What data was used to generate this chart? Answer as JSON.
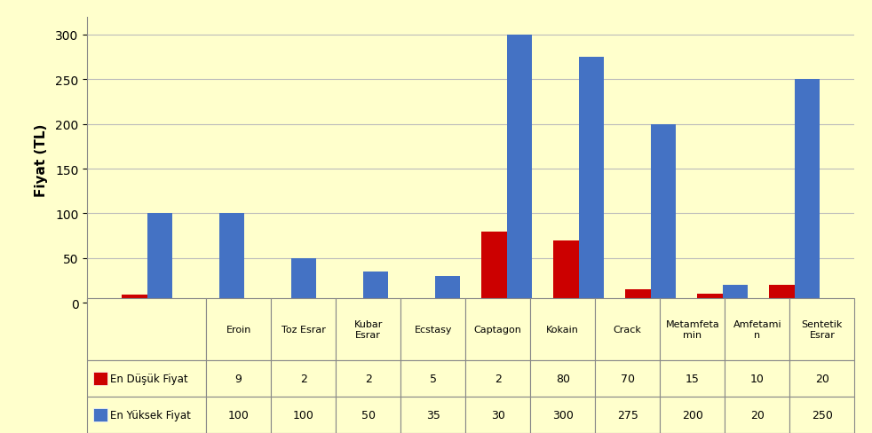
{
  "categories": [
    "Eroin",
    "Toz Esrar",
    "Kubar\nEsrar",
    "Ecstasy",
    "Captagon",
    "Kokain",
    "Crack",
    "Metamfeta\nmin",
    "Amfetami\nn",
    "Sentetik\nEsrar"
  ],
  "min_values": [
    9,
    2,
    2,
    5,
    2,
    80,
    70,
    15,
    10,
    20
  ],
  "max_values": [
    100,
    100,
    50,
    35,
    30,
    300,
    275,
    200,
    20,
    250
  ],
  "min_label": "En Düşük Fiyat",
  "max_label": "En Yüksek Fiyat",
  "min_color": "#CC0000",
  "max_color": "#4472C4",
  "ylabel": "Fiyat (TL)",
  "ylim": [
    0,
    320
  ],
  "yticks": [
    0,
    50,
    100,
    150,
    200,
    250,
    300
  ],
  "background_color": "#FFFFCC",
  "grid_color": "#BBBBBB",
  "bar_width": 0.35
}
